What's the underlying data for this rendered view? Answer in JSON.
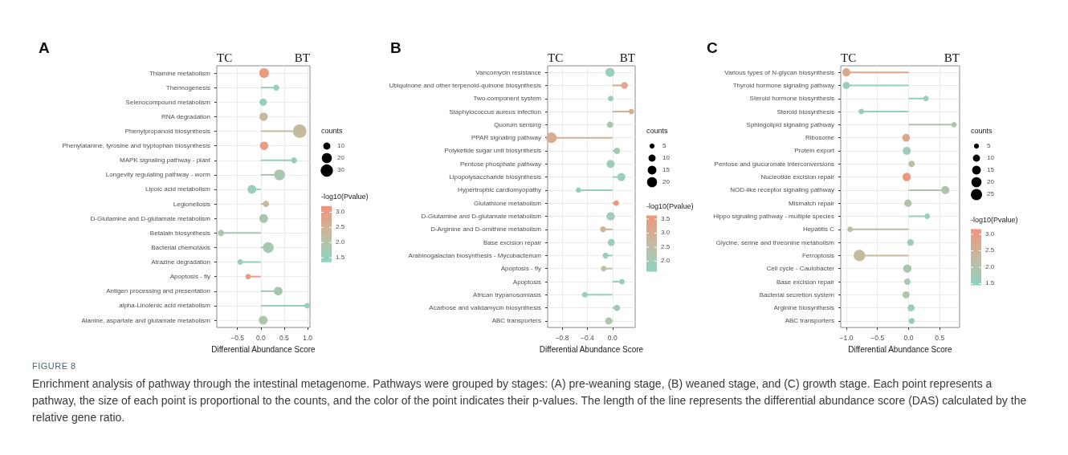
{
  "chart_data": [
    {
      "type": "lollipop",
      "orientation": "horizontal",
      "title": "A",
      "xlabel": "Differential Abundance Score",
      "legend_title": "counts",
      "clabel": "-log10(Pvalue)",
      "marker": "circle",
      "grid": true,
      "annotations": [
        "TC",
        "BT"
      ],
      "categories": [
        "Thiamine metabolism",
        "Thermogenesis",
        "Selenocompound metabolism",
        "RNA degradation",
        "Phenylpropanoid biosynthesis",
        "Phenylalanine, tyrosine and tryptophan biosynthesis",
        "MAPK signaling pathway - plant",
        "Longevity regulating pathway - worm",
        "Lipoic acid metabolism",
        "Legionellosis",
        "D-Glutamine and D-glutamate metabolism",
        "Betalain biosynthesis",
        "Bacterial chemotaxis",
        "Atrazine degradation",
        "Apoptosis - fly",
        "Antigen processing and presentation",
        "alpha-Linolenic acid metabolism",
        "Alanine, aspartate and glutamate metabolism"
      ],
      "values": [
        0.07,
        0.33,
        0.05,
        0.06,
        0.83,
        0.07,
        0.71,
        0.4,
        -0.19,
        0.11,
        0.06,
        -0.85,
        0.16,
        -0.44,
        -0.27,
        0.37,
        0.99,
        0.05
      ],
      "sizes": [
        19,
        7,
        11,
        14,
        36,
        14,
        7,
        23,
        15,
        8,
        15,
        8,
        23,
        6,
        6,
        15,
        6,
        15
      ],
      "cvalues": [
        3.1,
        1.5,
        1.5,
        2.3,
        2.3,
        3.0,
        1.5,
        1.8,
        1.5,
        2.3,
        1.8,
        1.8,
        1.8,
        1.5,
        3.0,
        1.8,
        1.5,
        1.9
      ],
      "size_legend": [
        10,
        20,
        30
      ],
      "clim": [
        1.35,
        3.2
      ],
      "cticks": [
        {
          "value": 1.5,
          "label": "1.5"
        },
        {
          "value": 2,
          "label": "2.0"
        },
        {
          "value": 2.5,
          "label": "2.5"
        },
        {
          "value": 3,
          "label": "3.0"
        }
      ],
      "xlim": [
        -0.94,
        1.05
      ],
      "xticks": [
        {
          "value": -0.5,
          "label": "−0.5"
        },
        {
          "value": 0,
          "label": "0.0"
        },
        {
          "value": 0.5,
          "label": "0.5"
        },
        {
          "value": 1,
          "label": "1.0"
        }
      ]
    },
    {
      "type": "lollipop",
      "orientation": "horizontal",
      "title": "B",
      "xlabel": "Differential Abundance Score",
      "legend_title": "counts",
      "clabel": "-log10(Pvalue)",
      "marker": "circle",
      "grid": true,
      "annotations": [
        "TC",
        "BT"
      ],
      "categories": [
        "Vancomycin resistance",
        "Ubiquinone and other terpenoid-quinone biosynthesis",
        "Two-component system",
        "Staphylococcus aureus infection",
        "Quorum sensing",
        "PPAR signaling pathway",
        "Polyketide sugar unit biosynthesis",
        "Pentose phosphate pathway",
        "Lipopolysaccharide biosynthesis",
        "Hypertrophic cardiomyopathy",
        "Glutathione metabolism",
        "D-Glutamine and D-glutamate metabolism",
        "D-Arginine and D-ornithine metabolism",
        "Base excision repair",
        "Arabinogalactan biosynthesis - Mycobacterium",
        "Apoptosis - fly",
        "Apoptosis",
        "African trypanosomiasis",
        "Acarbose and validamycin biosynthesis",
        "ABC transporters"
      ],
      "values": [
        -0.04,
        0.19,
        -0.03,
        0.3,
        -0.04,
        -0.97,
        0.07,
        -0.03,
        0.14,
        -0.54,
        0.06,
        -0.03,
        -0.15,
        -0.02,
        -0.11,
        -0.14,
        0.15,
        -0.44,
        0.07,
        -0.06
      ],
      "sizes": [
        16,
        9,
        6,
        6,
        8,
        22,
        8,
        13,
        13,
        6,
        6,
        14,
        7,
        10,
        7,
        6,
        6,
        6,
        8,
        10
      ],
      "cvalues": [
        1.8,
        3.2,
        1.8,
        2.9,
        2.2,
        3.0,
        2.1,
        1.9,
        1.8,
        1.8,
        3.6,
        1.9,
        2.8,
        1.9,
        1.9,
        2.4,
        1.8,
        1.8,
        2.0,
        2.2
      ],
      "size_legend": [
        5,
        10,
        15,
        20
      ],
      "clim": [
        1.63,
        3.63
      ],
      "cticks": [
        {
          "value": 2,
          "label": "2.0"
        },
        {
          "value": 2.5,
          "label": "2.5"
        },
        {
          "value": 3,
          "label": "3.0"
        },
        {
          "value": 3.5,
          "label": "3.5"
        }
      ],
      "xlim": [
        -1.03,
        0.36
      ],
      "xticks": [
        {
          "value": -0.8,
          "label": "−0.8"
        },
        {
          "value": -0.4,
          "label": "−0.4"
        },
        {
          "value": 0,
          "label": "0.0"
        }
      ]
    },
    {
      "type": "lollipop",
      "orientation": "horizontal",
      "title": "C",
      "xlabel": "Differential Abundance Score",
      "legend_title": "counts",
      "clabel": "-log10(Pvalue)",
      "marker": "circle",
      "grid": true,
      "annotations": [
        "TC",
        "BT"
      ],
      "categories": [
        "Various types of N-glycan biosynthesis",
        "Thyroid hormone signaling pathway",
        "Steroid hormone biosynthesis",
        "Steroid biosynthesis",
        "Sphingolipid signaling pathway",
        "Ribosome",
        "Protein export",
        "Pentose and glucuronate interconversions",
        "Nucleotide excision repair",
        "NOD-like receptor signaling pathway",
        "Mismatch repair",
        "Hippo signaling pathway - multiple species",
        "Hepatitis C",
        "Glycine, serine and threonine metabolism",
        "Ferroptosis",
        "Cell cycle - Caulobacter",
        "Base excision repair",
        "Bacterial secretion system",
        "Arginine biosynthesis",
        "ABC transporters"
      ],
      "values": [
        -1.0,
        -1.0,
        0.28,
        -0.76,
        0.73,
        -0.04,
        -0.03,
        0.05,
        -0.03,
        0.59,
        -0.01,
        0.3,
        -0.94,
        0.03,
        -0.79,
        -0.02,
        -0.02,
        -0.04,
        0.04,
        0.05
      ],
      "sizes": [
        13,
        10,
        6,
        6,
        6,
        12,
        13,
        8,
        14,
        13,
        11,
        6,
        6,
        9,
        26,
        14,
        8,
        10,
        10,
        7
      ],
      "cvalues": [
        2.8,
        1.6,
        1.6,
        1.6,
        2.0,
        2.8,
        1.7,
        2.2,
        3.1,
        2.0,
        2.0,
        1.6,
        2.2,
        1.7,
        2.3,
        1.9,
        1.8,
        2.0,
        1.6,
        1.8
      ],
      "size_legend": [
        5,
        10,
        15,
        20,
        25
      ],
      "clim": [
        1.45,
        3.16
      ],
      "cticks": [
        {
          "value": 1.5,
          "label": "1.5"
        },
        {
          "value": 2,
          "label": "2.0"
        },
        {
          "value": 2.5,
          "label": "2.5"
        },
        {
          "value": 3,
          "label": "3.0"
        }
      ],
      "xlim": [
        -1.09,
        0.82
      ],
      "xticks": [
        {
          "value": -1,
          "label": "−1.0"
        },
        {
          "value": -0.5,
          "label": "−0.5"
        },
        {
          "value": 0,
          "label": "0.0"
        },
        {
          "value": 0.5,
          "label": "0.5"
        }
      ]
    },
    {
      "type": "other",
      "title": "FIGURE 8",
      "annotations": [
        "Enrichment analysis of pathway through the intestinal metagenome. Pathways were grouped by stages: (A) pre-weaning stage, (B) weaned stage, and (C) growth stage. Each point represents a pathway, the size of each point is proportional to the counts, and the color of the point indicates their p-values. The length of the line represents the differential abundance score (DAS) calculated by the relative gene ratio."
      ]
    }
  ]
}
